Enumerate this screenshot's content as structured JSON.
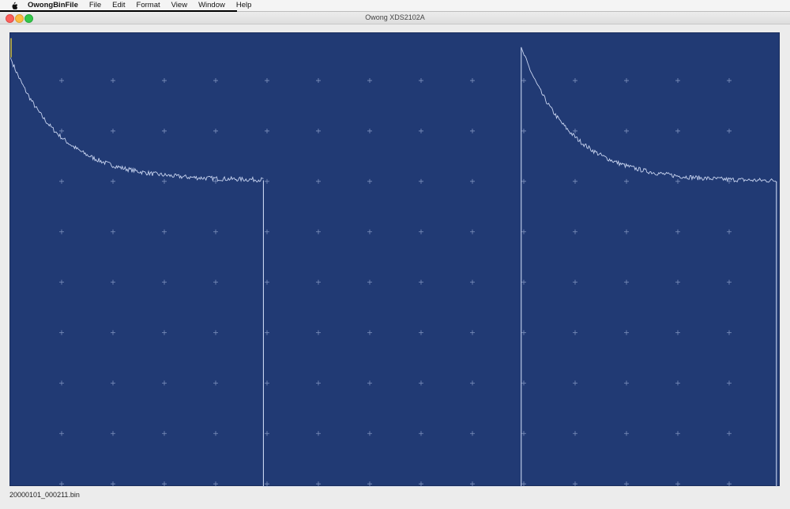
{
  "menubar": {
    "app_name": "OwongBinFile",
    "items": [
      "File",
      "Edit",
      "Format",
      "View",
      "Window",
      "Help"
    ]
  },
  "window": {
    "title": "Owong XDS2102A"
  },
  "status": {
    "filename": "20000101_000211.bin"
  },
  "scope": {
    "background_color": "#213a74",
    "grid_color": "#7f92bd",
    "trace_color": "#c8d4f0",
    "trigger_marker_color": "#d6c240"
  },
  "chart_data": {
    "type": "line",
    "title": "",
    "xlabel": "",
    "ylabel": "",
    "grid": true,
    "divisions": {
      "x": 15,
      "y": 9
    },
    "xlim": [
      0,
      15
    ],
    "ylim": [
      0,
      9
    ],
    "series": [
      {
        "segments": [
          {
            "x_start": 0.0,
            "x_end": 4.93,
            "y_start": 8.52,
            "y_asymptote": 6.08,
            "tau": 0.95,
            "noise": 0.045
          },
          {
            "x": 4.93,
            "y_from": 6.08,
            "y_to": 0.0
          },
          {
            "x_from": 4.93,
            "x_to": 9.95,
            "y": 0.0
          },
          {
            "x": 9.95,
            "y_from": 0.0,
            "y_to": 8.72
          },
          {
            "x_start": 9.95,
            "x_end": 14.92,
            "y_start": 8.72,
            "y_asymptote": 6.06,
            "tau": 0.95,
            "noise": 0.045
          },
          {
            "x": 14.92,
            "y_from": 6.06,
            "y_to": 0.0
          }
        ]
      }
    ]
  }
}
